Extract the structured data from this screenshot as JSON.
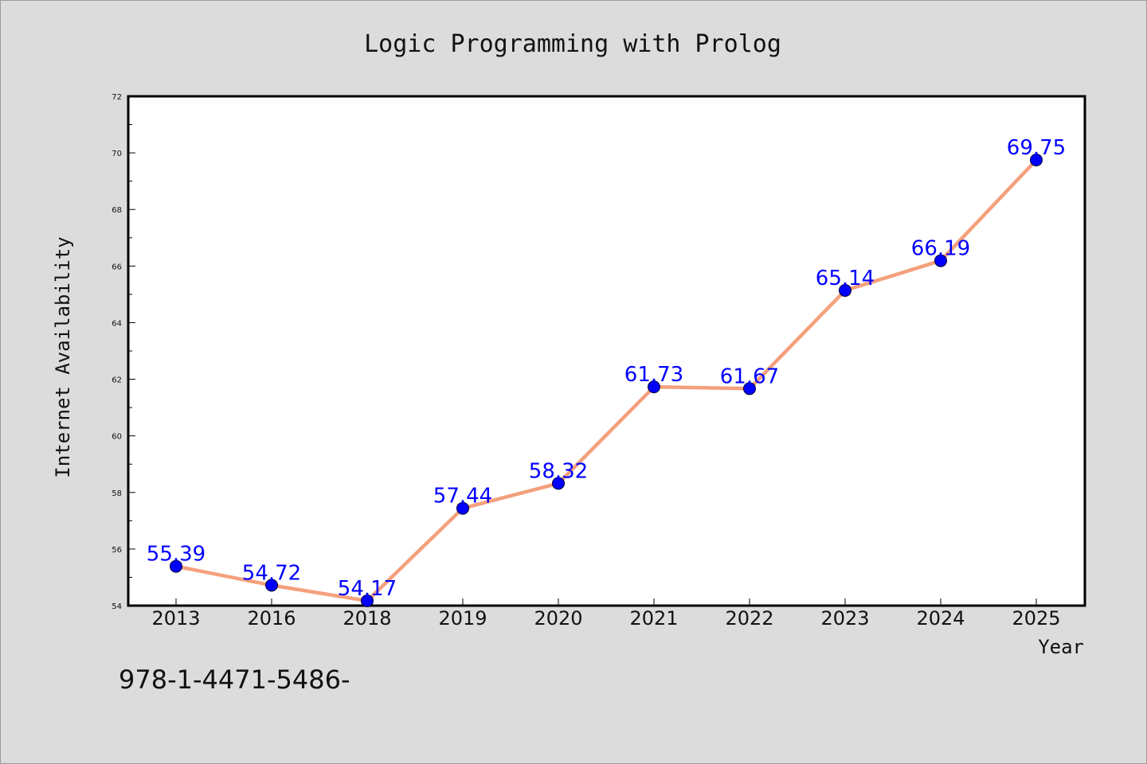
{
  "footnote": "978-1-4471-5486-",
  "chart_data": {
    "type": "line",
    "title": "Logic Programming with Prolog",
    "xlabel": "Year",
    "ylabel": "Internet Availability",
    "categories": [
      "2013",
      "2016",
      "2018",
      "2019",
      "2020",
      "2021",
      "2022",
      "2023",
      "2024",
      "2025"
    ],
    "series": [
      {
        "values": [
          55.39,
          54.72,
          54.17,
          57.44,
          58.32,
          61.73,
          61.67,
          65.14,
          66.19,
          69.75
        ],
        "data_labels": [
          "55.39",
          "54.72",
          "54.17",
          "57.44",
          "58.32",
          "61.73",
          "61.67",
          "65.14",
          "66.19",
          "69.75"
        ],
        "line_color": "#f4a07c",
        "marker_color": "#0000ff",
        "label_color": "#0000ff"
      }
    ],
    "ylim": [
      54,
      72
    ],
    "yticks": [
      54,
      56,
      58,
      60,
      62,
      64,
      66,
      68,
      70,
      72
    ],
    "ytick_labels": [
      "54",
      "56",
      "58",
      "60",
      "62",
      "64",
      "66",
      "68",
      "70",
      "72"
    ],
    "grid": false,
    "legend": "none",
    "background_color": "#dcdcdc",
    "plot_background_color": "#ffffff"
  }
}
